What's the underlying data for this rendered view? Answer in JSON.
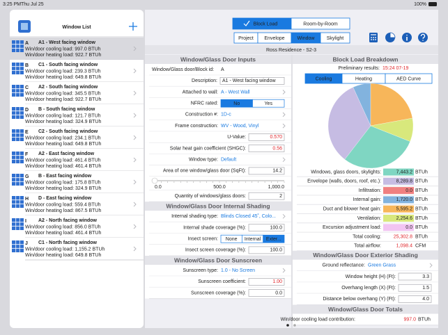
{
  "status_bar": {
    "time": "3:25 PM",
    "date": "Thu Jul 25",
    "battery": "100%"
  },
  "sidebar": {
    "title": "Window List",
    "items": [
      {
        "letter": "A",
        "name": "A1 - West facing window",
        "cooling": "Win/door cooling load: 997.0 BTUh",
        "heating": "Win/door heating load: 922.7 BTUh"
      },
      {
        "letter": "B",
        "name": "C1 - South facing window",
        "cooling": "Win/door cooling load: 239.3 BTUh",
        "heating": "Win/door heating load: 649.8 BTUh"
      },
      {
        "letter": "C",
        "name": "A2 - South facing window",
        "cooling": "Win/door cooling load: 345.5 BTUh",
        "heating": "Win/door heating load: 922.7 BTUh"
      },
      {
        "letter": "D",
        "name": "B - South facing window",
        "cooling": "Win/door cooling load: 121.7 BTUh",
        "heating": "Win/door heating load: 324.9 BTUh"
      },
      {
        "letter": "E",
        "name": "C2 - South facing window",
        "cooling": "Win/door cooling load: 234.1 BTUh",
        "heating": "Win/door heating load: 649.8 BTUh"
      },
      {
        "letter": "F",
        "name": "A2 - East facing window",
        "cooling": "Win/door cooling load: 461.4 BTUh",
        "heating": "Win/door heating load: 461.4 BTUh"
      },
      {
        "letter": "G",
        "name": "B - East facing window",
        "cooling": "Win/door cooling load: 175.8 BTUh",
        "heating": "Win/door heating load: 324.9 BTUh"
      },
      {
        "letter": "H",
        "name": "D - East facing window",
        "cooling": "Win/door cooling load: 559.4 BTUh",
        "heating": "Win/door heating load: 867.5 BTUh"
      },
      {
        "letter": "I",
        "name": "A2 - North facing window",
        "cooling": "Win/door cooling load: 856.0 BTUh",
        "heating": "Win/door heating load: 461.4 BTUh"
      },
      {
        "letter": "J",
        "name": "C1 - North facing window",
        "cooling": "Win/door cooling load: 1,155.2 BTUh",
        "heating": "Win/door heating load: 649.8 BTUh"
      }
    ]
  },
  "toolbar": {
    "modes": [
      "Block Load",
      "Room-by-Room"
    ],
    "mode_selected": 0,
    "tabs": [
      "Project",
      "Envelope",
      "Window",
      "Skylight"
    ],
    "tab_selected": 2
  },
  "project_title": "Ross Residence - S2-3",
  "left": {
    "sections": [
      {
        "title": "Window/Glass Door Inputs",
        "rows": [
          {
            "kind": "text",
            "label": "Window/Glass door/Block id:",
            "value": "A"
          },
          {
            "kind": "field",
            "label": "Description:",
            "value": "A1 - West facing window"
          },
          {
            "kind": "link",
            "label": "Attached to wall:",
            "value": "A - West Wall"
          },
          {
            "kind": "toggle",
            "label": "NFRC rated:",
            "options": [
              "No",
              "Yes"
            ],
            "selected": 0
          },
          {
            "kind": "link",
            "label": "Construction #:",
            "value": "1D-c"
          },
          {
            "kind": "link",
            "label": "Frame construction:",
            "value": "WV - Wood, Vinyl"
          },
          {
            "kind": "field",
            "label": "U-Value:",
            "value": "0.570",
            "alert": true
          },
          {
            "kind": "field",
            "label": "Solar heat gain coefficient (SHGC):",
            "value": "0.56",
            "alert": true
          },
          {
            "kind": "link",
            "label": "Window type:",
            "value": "Default"
          },
          {
            "kind": "field",
            "label": "Area of one window/glass door (SqFt):",
            "value": "14.2"
          },
          {
            "kind": "slider",
            "ticks": [
              "0.0",
              "500.0",
              "1,000.0"
            ]
          },
          {
            "kind": "field",
            "label": "Quantity of windows/glass doors:",
            "value": "2"
          }
        ]
      },
      {
        "title": "Window/Glass Door Internal Shading",
        "rows": [
          {
            "kind": "link",
            "label": "Internal shading type:",
            "value": "Blinds Closed 45˚, Colo..."
          },
          {
            "kind": "field",
            "label": "Internal shade coverage (%):",
            "value": "100.0"
          },
          {
            "kind": "toggle",
            "label": "Insect screen:",
            "options": [
              "None",
              "Internal",
              "Exter..."
            ],
            "selected": 2
          },
          {
            "kind": "field",
            "label": "Insect screen coverage (%):",
            "value": "100.0"
          }
        ]
      },
      {
        "title": "Window/Glass Door Sunscreen",
        "rows": [
          {
            "kind": "link",
            "label": "Sunscreen type:",
            "value": "1.0 - No Screen"
          },
          {
            "kind": "field",
            "label": "Sunscreen coefficient:",
            "value": "1.00",
            "alert": true
          },
          {
            "kind": "field",
            "label": "Sunscreen coverage (%):",
            "value": "0.0"
          }
        ]
      }
    ]
  },
  "right": {
    "breakdown": {
      "title": "Block Load Breakdown",
      "prelim_label": "Preliminary results:",
      "prelim_value": "15:24 07-19",
      "tabs": [
        "Cooling",
        "Heating",
        "AED Curve"
      ],
      "tab_selected": 0,
      "rows": [
        {
          "label": "Windows, glass doors, skylights:",
          "value": 7443.2,
          "value_label": "7,443.2",
          "unit": "BTUh",
          "color": "#7fd6c2"
        },
        {
          "label": "Envelope (walls, doors, roof, etc.):",
          "value": 8289.8,
          "value_label": "8,289.8",
          "unit": "BTUh",
          "color": "#c6bce3"
        },
        {
          "label": "Infiltration:",
          "value": 0.0,
          "value_label": "0.0",
          "unit": "BTUh",
          "color": "#f08080"
        },
        {
          "label": "Internal gain:",
          "value": 1720.0,
          "value_label": "1,720.0",
          "unit": "BTUh",
          "color": "#82b3de"
        },
        {
          "label": "Duct and blower heat gain:",
          "value": 5595.2,
          "value_label": "5,595.2",
          "unit": "BTUh",
          "color": "#f7b65a"
        },
        {
          "label": "Ventilation:",
          "value": 2254.6,
          "value_label": "2,254.6",
          "unit": "BTUh",
          "color": "#d8e87c"
        },
        {
          "label": "Excursion adjustment load:",
          "value": 0.0,
          "value_label": "0.0",
          "unit": "BTUh",
          "color": "#f2c4f2"
        }
      ],
      "totals": [
        {
          "label": "Total cooling:",
          "value": "25,302.8",
          "unit": "BTUh"
        },
        {
          "label": "Total airflow:",
          "value": "1,098.4",
          "unit": "CFM"
        }
      ]
    },
    "sections": [
      {
        "title": "Window/Glass Door Exterior Shading",
        "rows": [
          {
            "kind": "link",
            "label": "Ground reflectance:",
            "value": "Green Grass"
          },
          {
            "kind": "field",
            "label": "Window height (H) (Ft):",
            "value": "3.3"
          },
          {
            "kind": "field",
            "label": "Overhang length (X) (Ft):",
            "value": "1.5"
          },
          {
            "kind": "field",
            "label": "Distance below overhang (Y) (Ft):",
            "value": "4.0"
          }
        ]
      },
      {
        "title": "Window/Glass Door Totals",
        "rows": [
          {
            "kind": "total",
            "label": "Win/door cooling load contribution:",
            "value": "997.0",
            "unit": "BTUh"
          }
        ]
      }
    ]
  }
}
